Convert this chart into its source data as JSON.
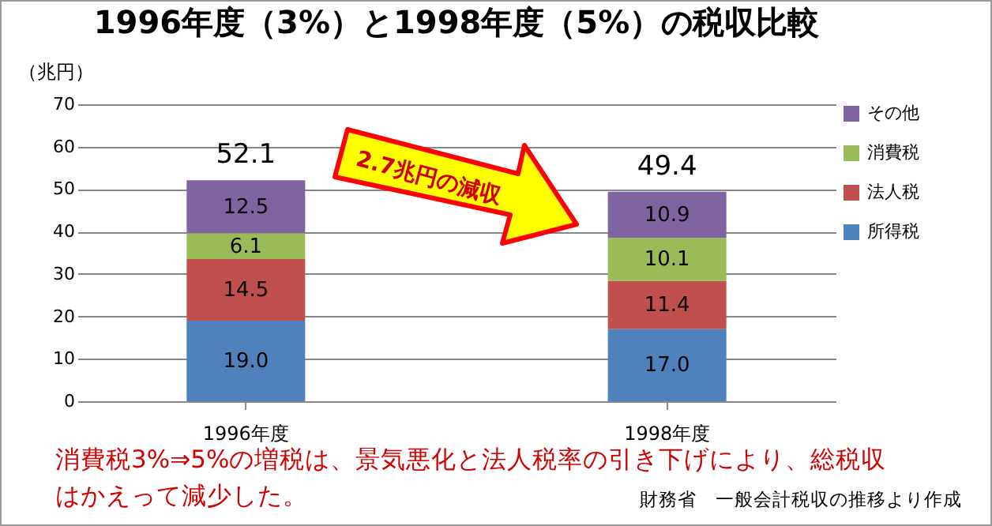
{
  "chart_data": {
    "type": "bar",
    "title": "1996年度（3%）と1998年度（5%）の税収比較",
    "ylabel": "（兆円）",
    "categories": [
      "1996年度",
      "1998年度"
    ],
    "series": [
      {
        "name": "所得税",
        "color": "#4f81bd",
        "values": [
          19.0,
          17.0
        ],
        "value_labels": [
          "19.0",
          "17.0"
        ]
      },
      {
        "name": "法人税",
        "color": "#c0504d",
        "values": [
          14.5,
          11.4
        ],
        "value_labels": [
          "14.5",
          "11.4"
        ]
      },
      {
        "name": "消費税",
        "color": "#9bbb59",
        "values": [
          6.1,
          10.1
        ],
        "value_labels": [
          "6.1",
          "10.1"
        ]
      },
      {
        "name": "その他",
        "color": "#8064a2",
        "values": [
          12.5,
          10.9
        ],
        "value_labels": [
          "12.5",
          "10.9"
        ]
      }
    ],
    "stacked": true,
    "totals": [
      "52.1",
      "49.4"
    ],
    "ylim": [
      0,
      70
    ],
    "yticks": [
      0,
      10,
      20,
      30,
      40,
      50,
      60,
      70
    ],
    "grid": "y",
    "legend": "right",
    "annotations": [
      "2.7兆円の減収",
      "消費税3%⇒5%の増税は、景気悪化と法人税率の引き下げにより、総税収はかえって減少した。",
      "財務省　一般会計税収の推移より作成"
    ]
  }
}
